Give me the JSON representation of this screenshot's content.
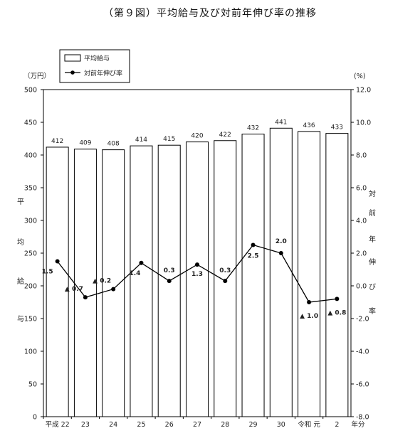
{
  "title": "（第９図）平均給与及び対前年伸び率の推移",
  "chart_data": {
    "type": "bar",
    "categories": [
      "平成 22",
      "23",
      "24",
      "25",
      "26",
      "27",
      "28",
      "29",
      "30",
      "令和 元",
      "2"
    ],
    "x_unit": "年分",
    "y_left_unit": "（万円）",
    "y_left_label": [
      "平",
      "均",
      "給",
      "与"
    ],
    "y_left_lim": [
      0,
      500
    ],
    "y_left_ticks": [
      "0",
      "50",
      "100",
      "150",
      "200",
      "250",
      "300",
      "350",
      "400",
      "450",
      "500"
    ],
    "y_right_unit": "(%)",
    "y_right_label": [
      "対",
      "前",
      "年",
      "伸",
      "び",
      "率"
    ],
    "y_right_lim": [
      -8.0,
      12.0
    ],
    "y_right_ticks": [
      "-8.0",
      "-6.0",
      "-4.0",
      "-2.0",
      "0.0",
      "2.0",
      "4.0",
      "6.0",
      "8.0",
      "10.0",
      "12.0"
    ],
    "series": [
      {
        "name": "平均給与",
        "kind": "bar",
        "axis": "left",
        "values": [
          412,
          409,
          408,
          414,
          415,
          420,
          422,
          432,
          441,
          436,
          433
        ],
        "labels": [
          "412",
          "409",
          "408",
          "414",
          "415",
          "420",
          "422",
          "432",
          "441",
          "436",
          "433"
        ]
      },
      {
        "name": "対前年伸び率",
        "kind": "line",
        "axis": "right",
        "values": [
          1.5,
          -0.7,
          -0.2,
          1.4,
          0.3,
          1.3,
          0.3,
          2.5,
          2.0,
          -1.0,
          -0.8
        ],
        "labels": [
          "1.5",
          "▲ 0.7",
          "▲ 0.2",
          "1.4",
          "0.3",
          "1.3",
          "0.3",
          "2.5",
          "2.0",
          "▲ 1.0",
          "▲ 0.8"
        ]
      }
    ],
    "legend_position": "top-left"
  }
}
